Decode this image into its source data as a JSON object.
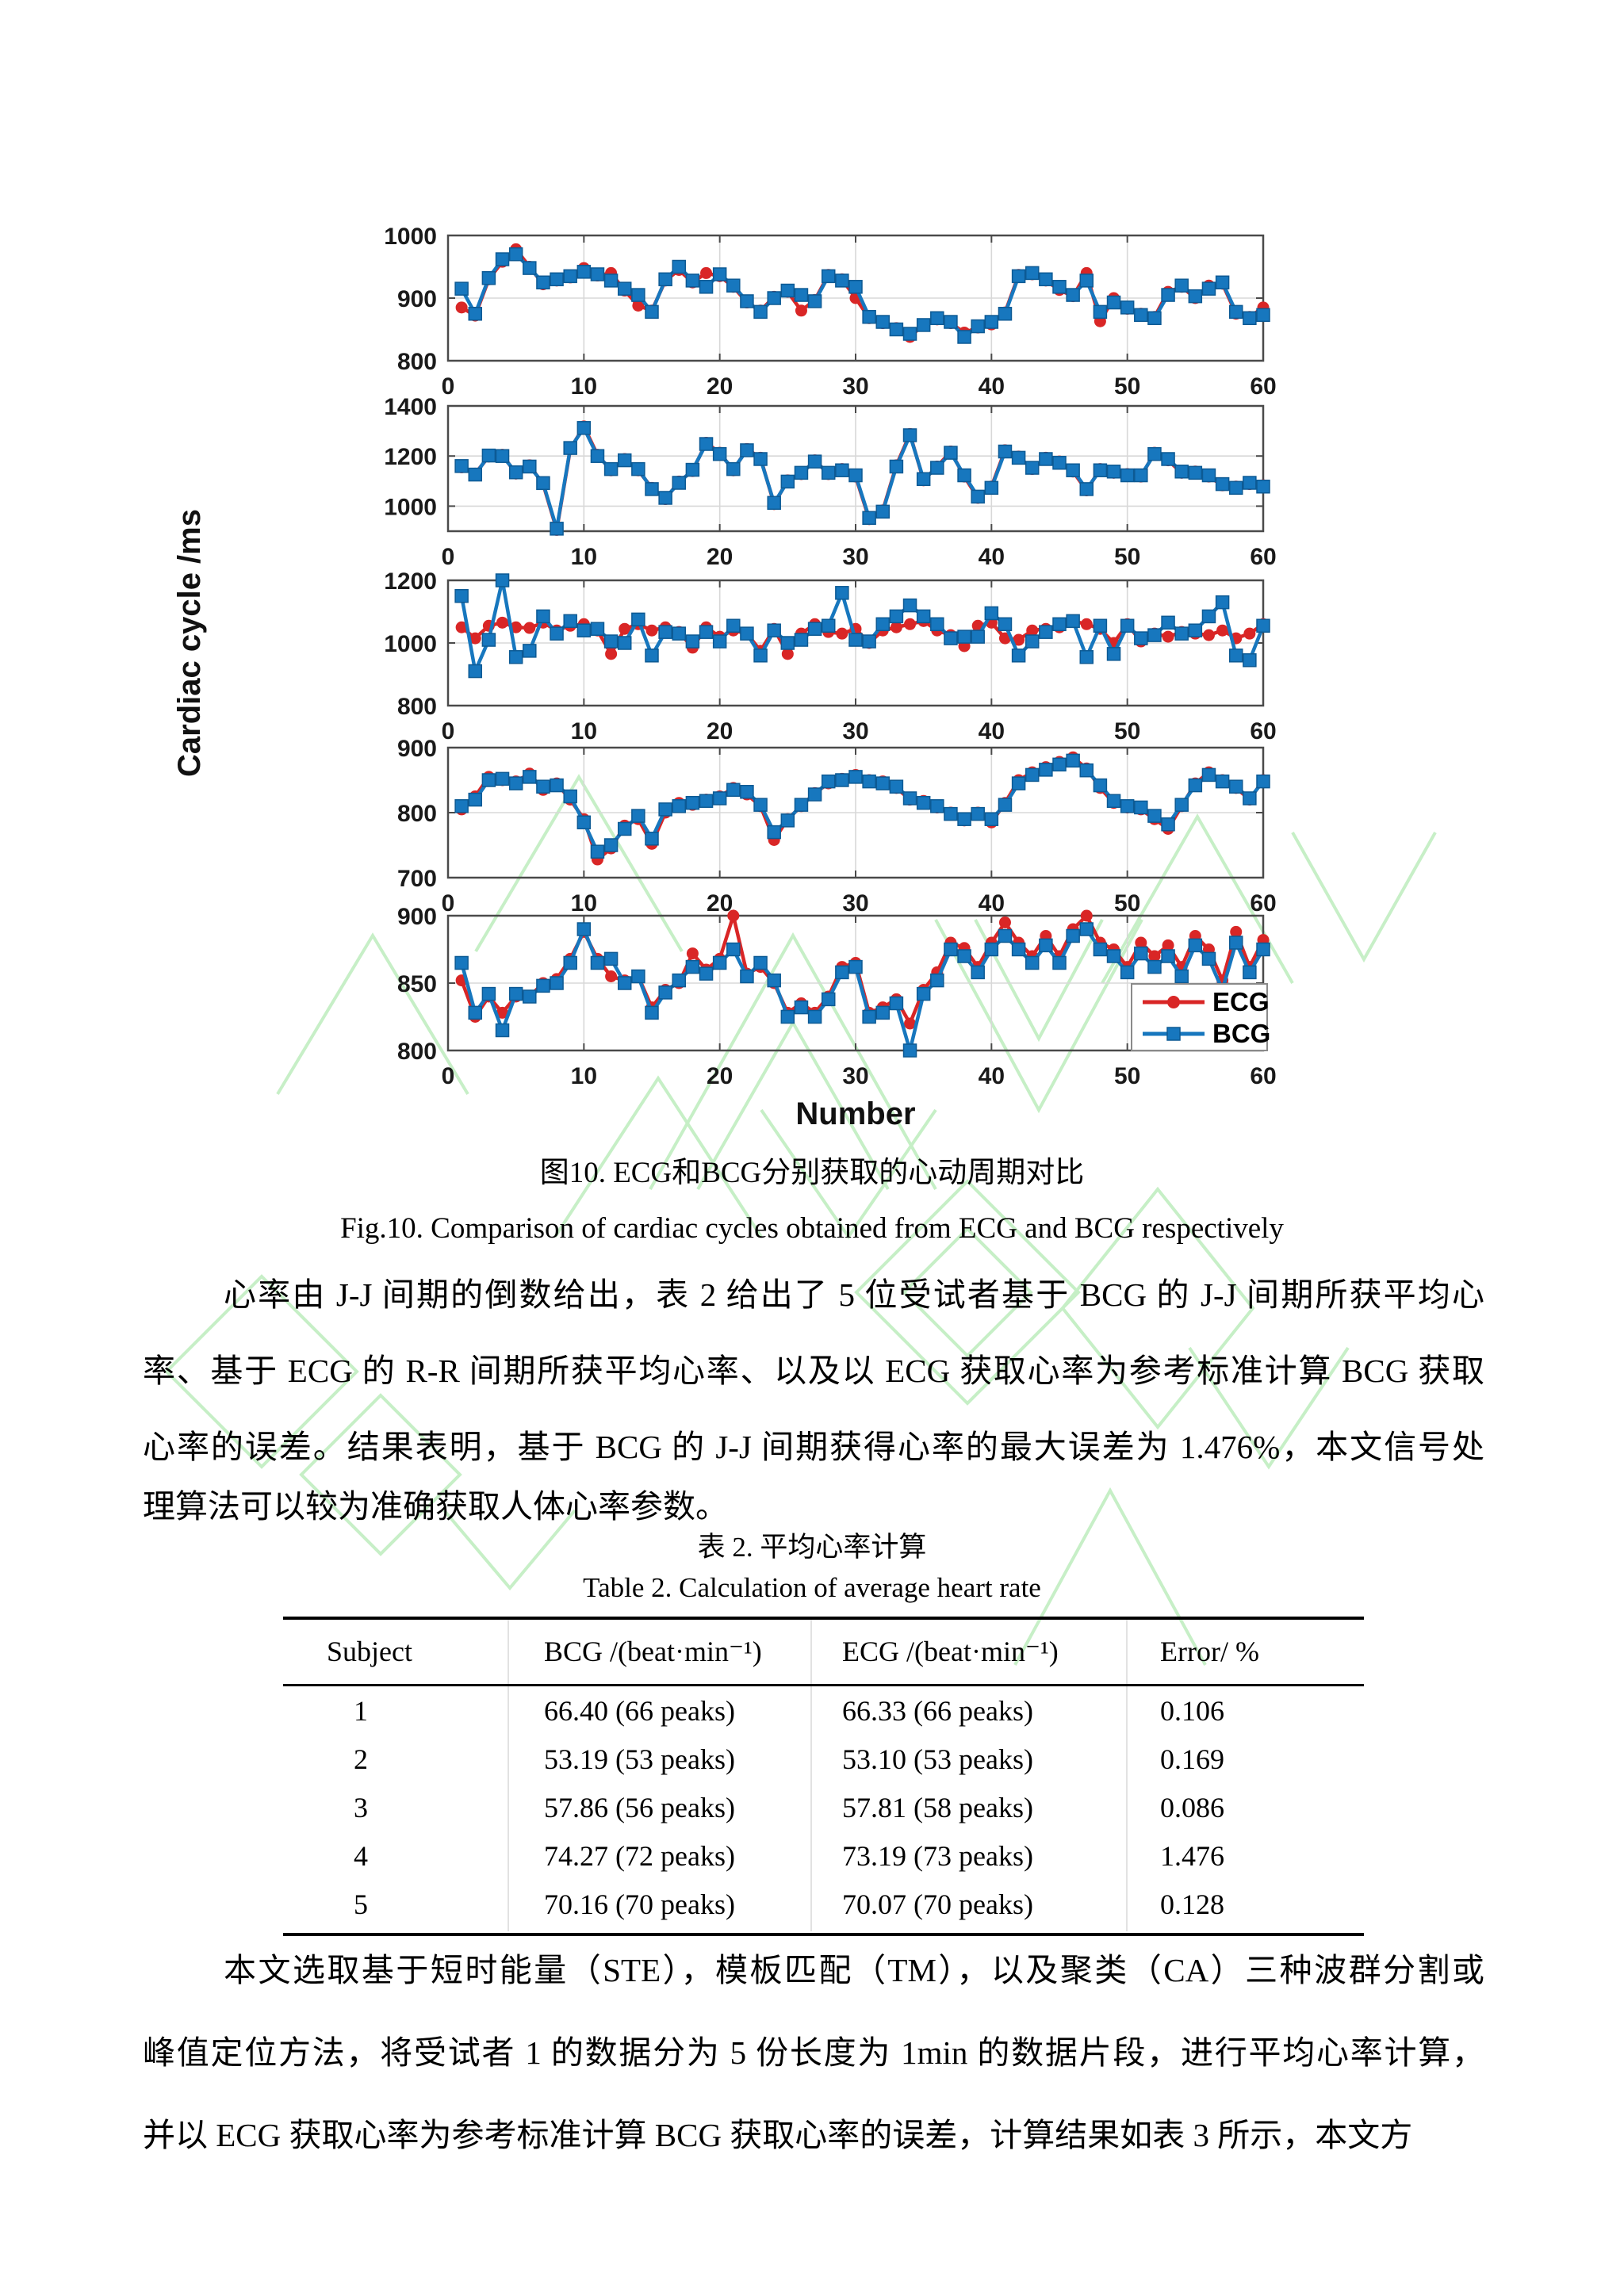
{
  "figure": {
    "ylabel": "Cardiac cycle /ms",
    "xlabel": "Number",
    "caption_cn": "图10. ECG和BCG分别获取的心动周期对比",
    "caption_en": "Fig.10. Comparison of cardiac cycles obtained from ECG and BCG respectively",
    "colors": {
      "ecg": "#d92626",
      "bcg": "#1777be",
      "bcg_edge": "#0d5a94",
      "grid": "#d8d8d8",
      "axis": "#4a4a4a",
      "legend_border": "#8a8a8a",
      "watermark": "#8fe08f"
    }
  },
  "chart_data": [
    {
      "type": "line",
      "panel": 1,
      "x_range": [
        0,
        60
      ],
      "xticks": [
        0,
        10,
        20,
        30,
        40,
        50,
        60
      ],
      "ylim": [
        800,
        1000
      ],
      "yticks": [
        800,
        900,
        1000
      ],
      "xlabel": "",
      "ylabel": "Cardiac cycle /ms",
      "grid": true,
      "series": [
        {
          "name": "ECG",
          "color": "#d92626",
          "marker": "circle",
          "values": [
            885,
            872,
            930,
            958,
            978,
            950,
            922,
            928,
            933,
            948,
            936,
            940,
            912,
            888,
            880,
            928,
            945,
            925,
            940,
            935,
            918,
            893,
            880,
            902,
            910,
            880,
            897,
            937,
            930,
            900,
            868,
            860,
            852,
            838,
            858,
            866,
            860,
            845,
            853,
            858,
            877,
            937,
            938,
            928,
            913,
            903,
            940,
            863,
            900,
            883,
            875,
            870,
            910,
            918,
            900,
            920,
            923,
            875,
            870,
            885
          ]
        },
        {
          "name": "BCG",
          "color": "#1777be",
          "marker": "square",
          "values": [
            915,
            875,
            932,
            962,
            970,
            948,
            925,
            930,
            935,
            942,
            938,
            928,
            915,
            905,
            878,
            930,
            950,
            928,
            918,
            938,
            920,
            895,
            878,
            900,
            912,
            905,
            895,
            935,
            928,
            918,
            870,
            862,
            850,
            843,
            857,
            868,
            862,
            838,
            855,
            862,
            875,
            935,
            940,
            930,
            918,
            905,
            928,
            878,
            893,
            885,
            873,
            868,
            905,
            920,
            903,
            915,
            925,
            878,
            868,
            873
          ]
        }
      ]
    },
    {
      "type": "line",
      "panel": 2,
      "x_range": [
        0,
        60
      ],
      "xticks": [
        0,
        10,
        20,
        30,
        40,
        50,
        60
      ],
      "ylim": [
        900,
        1400
      ],
      "yticks": [
        1000,
        1200,
        1400
      ],
      "xlabel": "",
      "ylabel": "Cardiac cycle /ms",
      "grid": true,
      "series": [
        {
          "name": "ECG",
          "color": "#d92626",
          "marker": "circle",
          "values": [
            1155,
            1130,
            1198,
            1205,
            1130,
            1163,
            1088,
            905,
            1228,
            1318,
            1205,
            1143,
            1188,
            1143,
            1073,
            1028,
            1098,
            1140,
            1253,
            1213,
            1143,
            1228,
            1193,
            1008,
            1103,
            1128,
            1183,
            1128,
            1148,
            1118,
            948,
            983,
            1163,
            1288,
            1103,
            1158,
            1218,
            1118,
            1033,
            1078,
            1223,
            1198,
            1148,
            1193,
            1178,
            1138,
            1063,
            1148,
            1133,
            1128,
            1118,
            1213,
            1183,
            1133,
            1138,
            1118,
            1083,
            1078,
            1088,
            1083
          ]
        },
        {
          "name": "BCG",
          "color": "#1777be",
          "marker": "square",
          "values": [
            1160,
            1126,
            1202,
            1200,
            1135,
            1158,
            1092,
            910,
            1232,
            1312,
            1200,
            1148,
            1183,
            1148,
            1068,
            1033,
            1093,
            1145,
            1248,
            1208,
            1148,
            1223,
            1188,
            1013,
            1098,
            1133,
            1178,
            1133,
            1143,
            1123,
            953,
            978,
            1158,
            1283,
            1108,
            1153,
            1213,
            1123,
            1038,
            1073,
            1218,
            1193,
            1153,
            1188,
            1173,
            1143,
            1068,
            1143,
            1138,
            1123,
            1123,
            1208,
            1188,
            1138,
            1133,
            1123,
            1088,
            1073,
            1093,
            1078
          ]
        }
      ]
    },
    {
      "type": "line",
      "panel": 3,
      "x_range": [
        0,
        60
      ],
      "xticks": [
        0,
        10,
        20,
        30,
        40,
        50,
        60
      ],
      "ylim": [
        800,
        1200
      ],
      "yticks": [
        800,
        1000,
        1200
      ],
      "xlabel": "",
      "ylabel": "Cardiac cycle /ms",
      "grid": true,
      "series": [
        {
          "name": "ECG",
          "color": "#d92626",
          "marker": "circle",
          "values": [
            1050,
            1015,
            1055,
            1065,
            1050,
            1048,
            1065,
            1040,
            1055,
            1060,
            1040,
            965,
            1045,
            1060,
            1040,
            1050,
            1035,
            985,
            1050,
            1020,
            1040,
            1030,
            975,
            1045,
            965,
            1030,
            1060,
            1035,
            1030,
            1045,
            1000,
            1040,
            1050,
            1060,
            1070,
            1040,
            1025,
            990,
            1055,
            1065,
            1015,
            1010,
            1040,
            1045,
            1050,
            1070,
            1060,
            1045,
            1000,
            1060,
            1005,
            1030,
            1020,
            1035,
            1030,
            1025,
            1040,
            1015,
            1030,
            1060
          ]
        },
        {
          "name": "BCG",
          "color": "#1777be",
          "marker": "square",
          "values": [
            1150,
            910,
            1010,
            1200,
            955,
            975,
            1085,
            1030,
            1070,
            1040,
            1045,
            1005,
            1000,
            1075,
            960,
            1035,
            1030,
            1005,
            1035,
            1005,
            1055,
            1030,
            960,
            1040,
            1000,
            1010,
            1045,
            1055,
            1160,
            1010,
            1005,
            1060,
            1085,
            1120,
            1085,
            1060,
            1015,
            1020,
            1020,
            1095,
            1060,
            960,
            1005,
            1035,
            1060,
            1070,
            955,
            1055,
            965,
            1055,
            1015,
            1025,
            1065,
            1030,
            1040,
            1085,
            1130,
            960,
            945,
            1055
          ]
        }
      ]
    },
    {
      "type": "line",
      "panel": 4,
      "x_range": [
        0,
        60
      ],
      "xticks": [
        0,
        10,
        20,
        30,
        40,
        50,
        60
      ],
      "ylim": [
        700,
        900
      ],
      "yticks": [
        700,
        800,
        900
      ],
      "xlabel": "",
      "ylabel": "Cardiac cycle /ms",
      "grid": true,
      "series": [
        {
          "name": "ECG",
          "color": "#d92626",
          "marker": "circle",
          "values": [
            805,
            825,
            855,
            850,
            848,
            860,
            835,
            845,
            820,
            790,
            728,
            745,
            780,
            790,
            752,
            800,
            815,
            812,
            820,
            825,
            838,
            828,
            810,
            758,
            790,
            810,
            830,
            845,
            852,
            858,
            850,
            848,
            838,
            820,
            818,
            808,
            800,
            788,
            800,
            785,
            815,
            850,
            862,
            870,
            878,
            885,
            868,
            838,
            815,
            808,
            805,
            790,
            775,
            810,
            845,
            862,
            850,
            838,
            820,
            850
          ]
        },
        {
          "name": "BCG",
          "color": "#1777be",
          "marker": "square",
          "values": [
            810,
            820,
            850,
            852,
            845,
            855,
            840,
            842,
            825,
            785,
            740,
            750,
            775,
            795,
            760,
            805,
            810,
            815,
            818,
            822,
            835,
            832,
            812,
            770,
            788,
            812,
            828,
            848,
            850,
            855,
            848,
            845,
            840,
            822,
            815,
            810,
            798,
            790,
            798,
            790,
            812,
            845,
            858,
            866,
            874,
            880,
            865,
            842,
            818,
            810,
            808,
            795,
            782,
            812,
            842,
            858,
            848,
            840,
            822,
            848
          ]
        }
      ]
    },
    {
      "type": "line",
      "panel": 5,
      "x_range": [
        0,
        60
      ],
      "xticks": [
        0,
        10,
        20,
        30,
        40,
        50,
        60
      ],
      "ylim": [
        800,
        900
      ],
      "yticks": [
        800,
        850,
        900
      ],
      "xlabel": "Number",
      "ylabel": "Cardiac cycle /ms",
      "grid": true,
      "legend_position": "bottom-right-inside",
      "series": [
        {
          "name": "ECG",
          "color": "#d92626",
          "marker": "circle",
          "values": [
            852,
            825,
            840,
            828,
            840,
            840,
            850,
            853,
            868,
            888,
            868,
            855,
            852,
            855,
            832,
            845,
            850,
            872,
            860,
            868,
            900,
            857,
            862,
            850,
            828,
            835,
            828,
            840,
            862,
            865,
            828,
            832,
            838,
            820,
            845,
            858,
            880,
            876,
            862,
            880,
            895,
            880,
            870,
            885,
            870,
            890,
            900,
            880,
            875,
            862,
            880,
            870,
            878,
            862,
            885,
            875,
            852,
            888,
            862,
            882
          ]
        },
        {
          "name": "BCG",
          "color": "#1777be",
          "marker": "square",
          "values": [
            865,
            828,
            842,
            815,
            842,
            840,
            848,
            850,
            865,
            890,
            865,
            868,
            850,
            855,
            828,
            843,
            852,
            862,
            857,
            865,
            875,
            855,
            865,
            852,
            825,
            832,
            825,
            838,
            858,
            862,
            825,
            828,
            835,
            800,
            842,
            852,
            875,
            870,
            858,
            875,
            885,
            875,
            865,
            878,
            865,
            885,
            890,
            875,
            870,
            858,
            872,
            862,
            870,
            855,
            878,
            868,
            845,
            880,
            858,
            875
          ]
        }
      ]
    }
  ],
  "paragraph1": {
    "lines": [
      "心率由 J-J 间期的倒数给出，表 2 给出了 5 位受试者基于 BCG 的 J-J 间期所获平均心",
      "率、基于 ECG 的 R-R 间期所获平均心率、以及以 ECG 获取心率为参考标准计算 BCG 获取",
      "心率的误差。结果表明，基于 BCG 的 J-J 间期获得心率的最大误差为 1.476%，本文信号处",
      "理算法可以较为准确获取人体心率参数。"
    ]
  },
  "table": {
    "caption_cn": "表 2. 平均心率计算",
    "caption_en": "Table 2. Calculation of average heart rate",
    "headers": [
      "Subject",
      "BCG /(beat·min⁻¹)",
      "ECG /(beat·min⁻¹)",
      "Error/ %"
    ],
    "rows": [
      [
        "1",
        "66.40 (66 peaks)",
        "66.33 (66 peaks)",
        "0.106"
      ],
      [
        "2",
        "53.19 (53 peaks)",
        "53.10 (53 peaks)",
        "0.169"
      ],
      [
        "3",
        "57.86 (56 peaks)",
        "57.81 (58 peaks)",
        "0.086"
      ],
      [
        "4",
        "74.27 (72 peaks)",
        "73.19 (73 peaks)",
        "1.476"
      ],
      [
        "5",
        "70.16 (70 peaks)",
        "70.07 (70 peaks)",
        "0.128"
      ]
    ]
  },
  "paragraph2": {
    "lines": [
      "本文选取基于短时能量（STE），模板匹配（TM），以及聚类（CA）三种波群分割或",
      "峰值定位方法，将受试者 1 的数据分为 5 份长度为 1min 的数据片段，进行平均心率计算，",
      "并以 ECG 获取心率为参考标准计算 BCG 获取心率的误差，计算结果如表 3 所示，本文方"
    ]
  }
}
